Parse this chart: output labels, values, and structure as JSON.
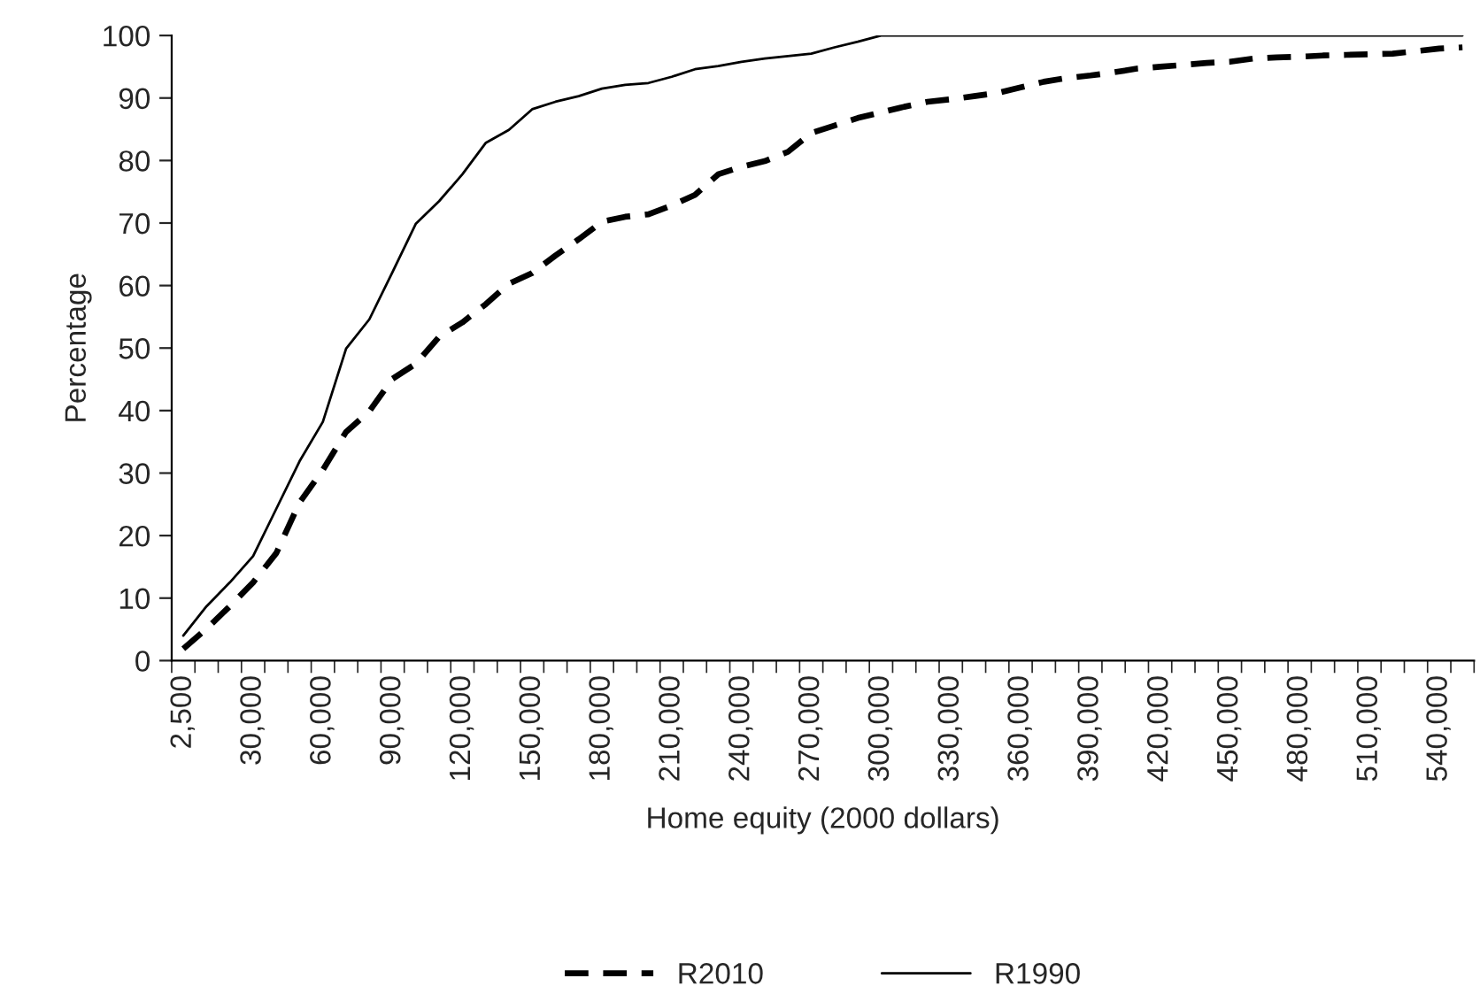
{
  "chart_data": {
    "type": "line",
    "xlabel": "Home equity (2000 dollars)",
    "ylabel": "Percentage",
    "categories": [
      "2,500",
      null,
      null,
      "30,000",
      null,
      null,
      "60,000",
      null,
      null,
      "90,000",
      null,
      null,
      "120,000",
      null,
      null,
      "150,000",
      null,
      null,
      "180,000",
      null,
      null,
      "210,000",
      null,
      null,
      "240,000",
      null,
      null,
      "270,000",
      null,
      null,
      "300,000",
      null,
      null,
      "330,000",
      null,
      null,
      "360,000",
      null,
      null,
      "390,000",
      null,
      null,
      "420,000",
      null,
      null,
      "450,000",
      null,
      null,
      "480,000",
      null,
      null,
      "510,000",
      null,
      null,
      "540,000",
      null
    ],
    "series": [
      {
        "name": "R2010",
        "color": "#000000",
        "line_style": "dashed",
        "values": [
          1.9,
          5.1,
          8.7,
          12.5,
          17.2,
          25.3,
          30.5,
          36.6,
          39.9,
          45.1,
          47.5,
          51.8,
          54.1,
          57.0,
          60.3,
          62.0,
          64.8,
          67.4,
          70.2,
          71.0,
          71.4,
          72.8,
          74.5,
          77.8,
          79.0,
          79.9,
          81.4,
          84.4,
          85.6,
          86.8,
          87.7,
          88.6,
          89.4,
          89.8,
          90.3,
          90.8,
          91.7,
          92.6,
          93.2,
          93.6,
          94.1,
          94.7,
          95.0,
          95.3,
          95.6,
          95.8,
          96.3,
          96.5,
          96.6,
          96.8,
          96.9,
          97.0,
          97.1,
          97.5,
          97.9,
          98.1
        ]
      },
      {
        "name": "R1990",
        "color": "#000000",
        "line_style": "solid",
        "values": [
          4.0,
          8.7,
          12.5,
          16.7,
          24.3,
          31.9,
          38.2,
          49.9,
          54.6,
          62.2,
          69.9,
          73.5,
          77.8,
          82.8,
          84.9,
          88.2,
          89.4,
          90.3,
          91.5,
          92.1,
          92.4,
          93.4,
          94.6,
          95.1,
          95.8,
          96.3,
          96.7,
          97.1,
          98.1,
          99.0,
          100,
          100,
          100,
          100,
          100,
          100,
          100,
          100,
          100,
          100,
          100,
          100,
          100,
          100,
          100,
          100,
          100,
          100,
          100,
          100,
          100,
          100,
          100,
          100,
          100,
          100
        ]
      }
    ],
    "ylim": [
      0,
      100
    ],
    "yticks": [
      0,
      10,
      20,
      30,
      40,
      50,
      60,
      70,
      80,
      90,
      100
    ],
    "grid": false,
    "legend": "bottom",
    "marker": "none"
  }
}
